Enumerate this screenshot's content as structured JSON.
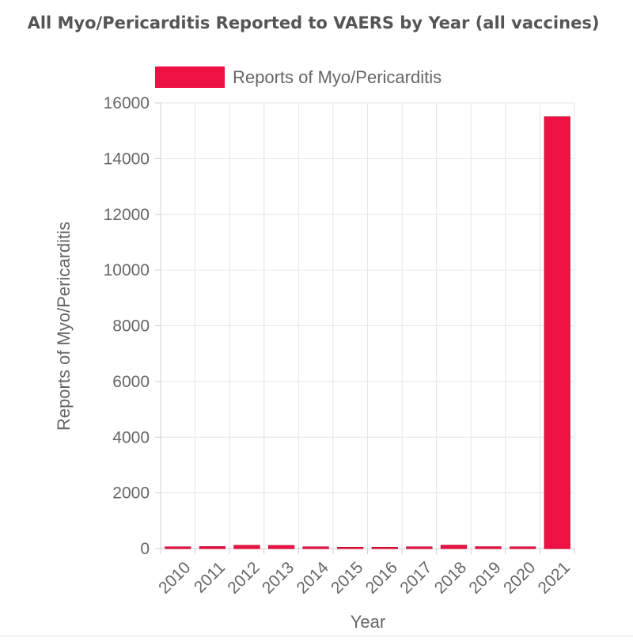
{
  "chart_data": {
    "type": "bar",
    "title": "All Myo/Pericarditis Reported to VAERS by Year (all vaccines)",
    "xlabel": "Year",
    "ylabel": "Reports of Myo/Pericarditis",
    "categories": [
      "2010",
      "2011",
      "2012",
      "2013",
      "2014",
      "2015",
      "2016",
      "2017",
      "2018",
      "2019",
      "2020",
      "2021"
    ],
    "series": [
      {
        "name": "Reports of Myo/Pericarditis",
        "values": [
          60,
          70,
          115,
          110,
          60,
          30,
          40,
          60,
          120,
          65,
          60,
          15500
        ],
        "color": "#ee1144"
      }
    ],
    "ylim": [
      0,
      16000
    ],
    "yticks": [
      0,
      2000,
      4000,
      6000,
      8000,
      10000,
      12000,
      14000,
      16000
    ],
    "grid": true,
    "legend_position": "top"
  }
}
